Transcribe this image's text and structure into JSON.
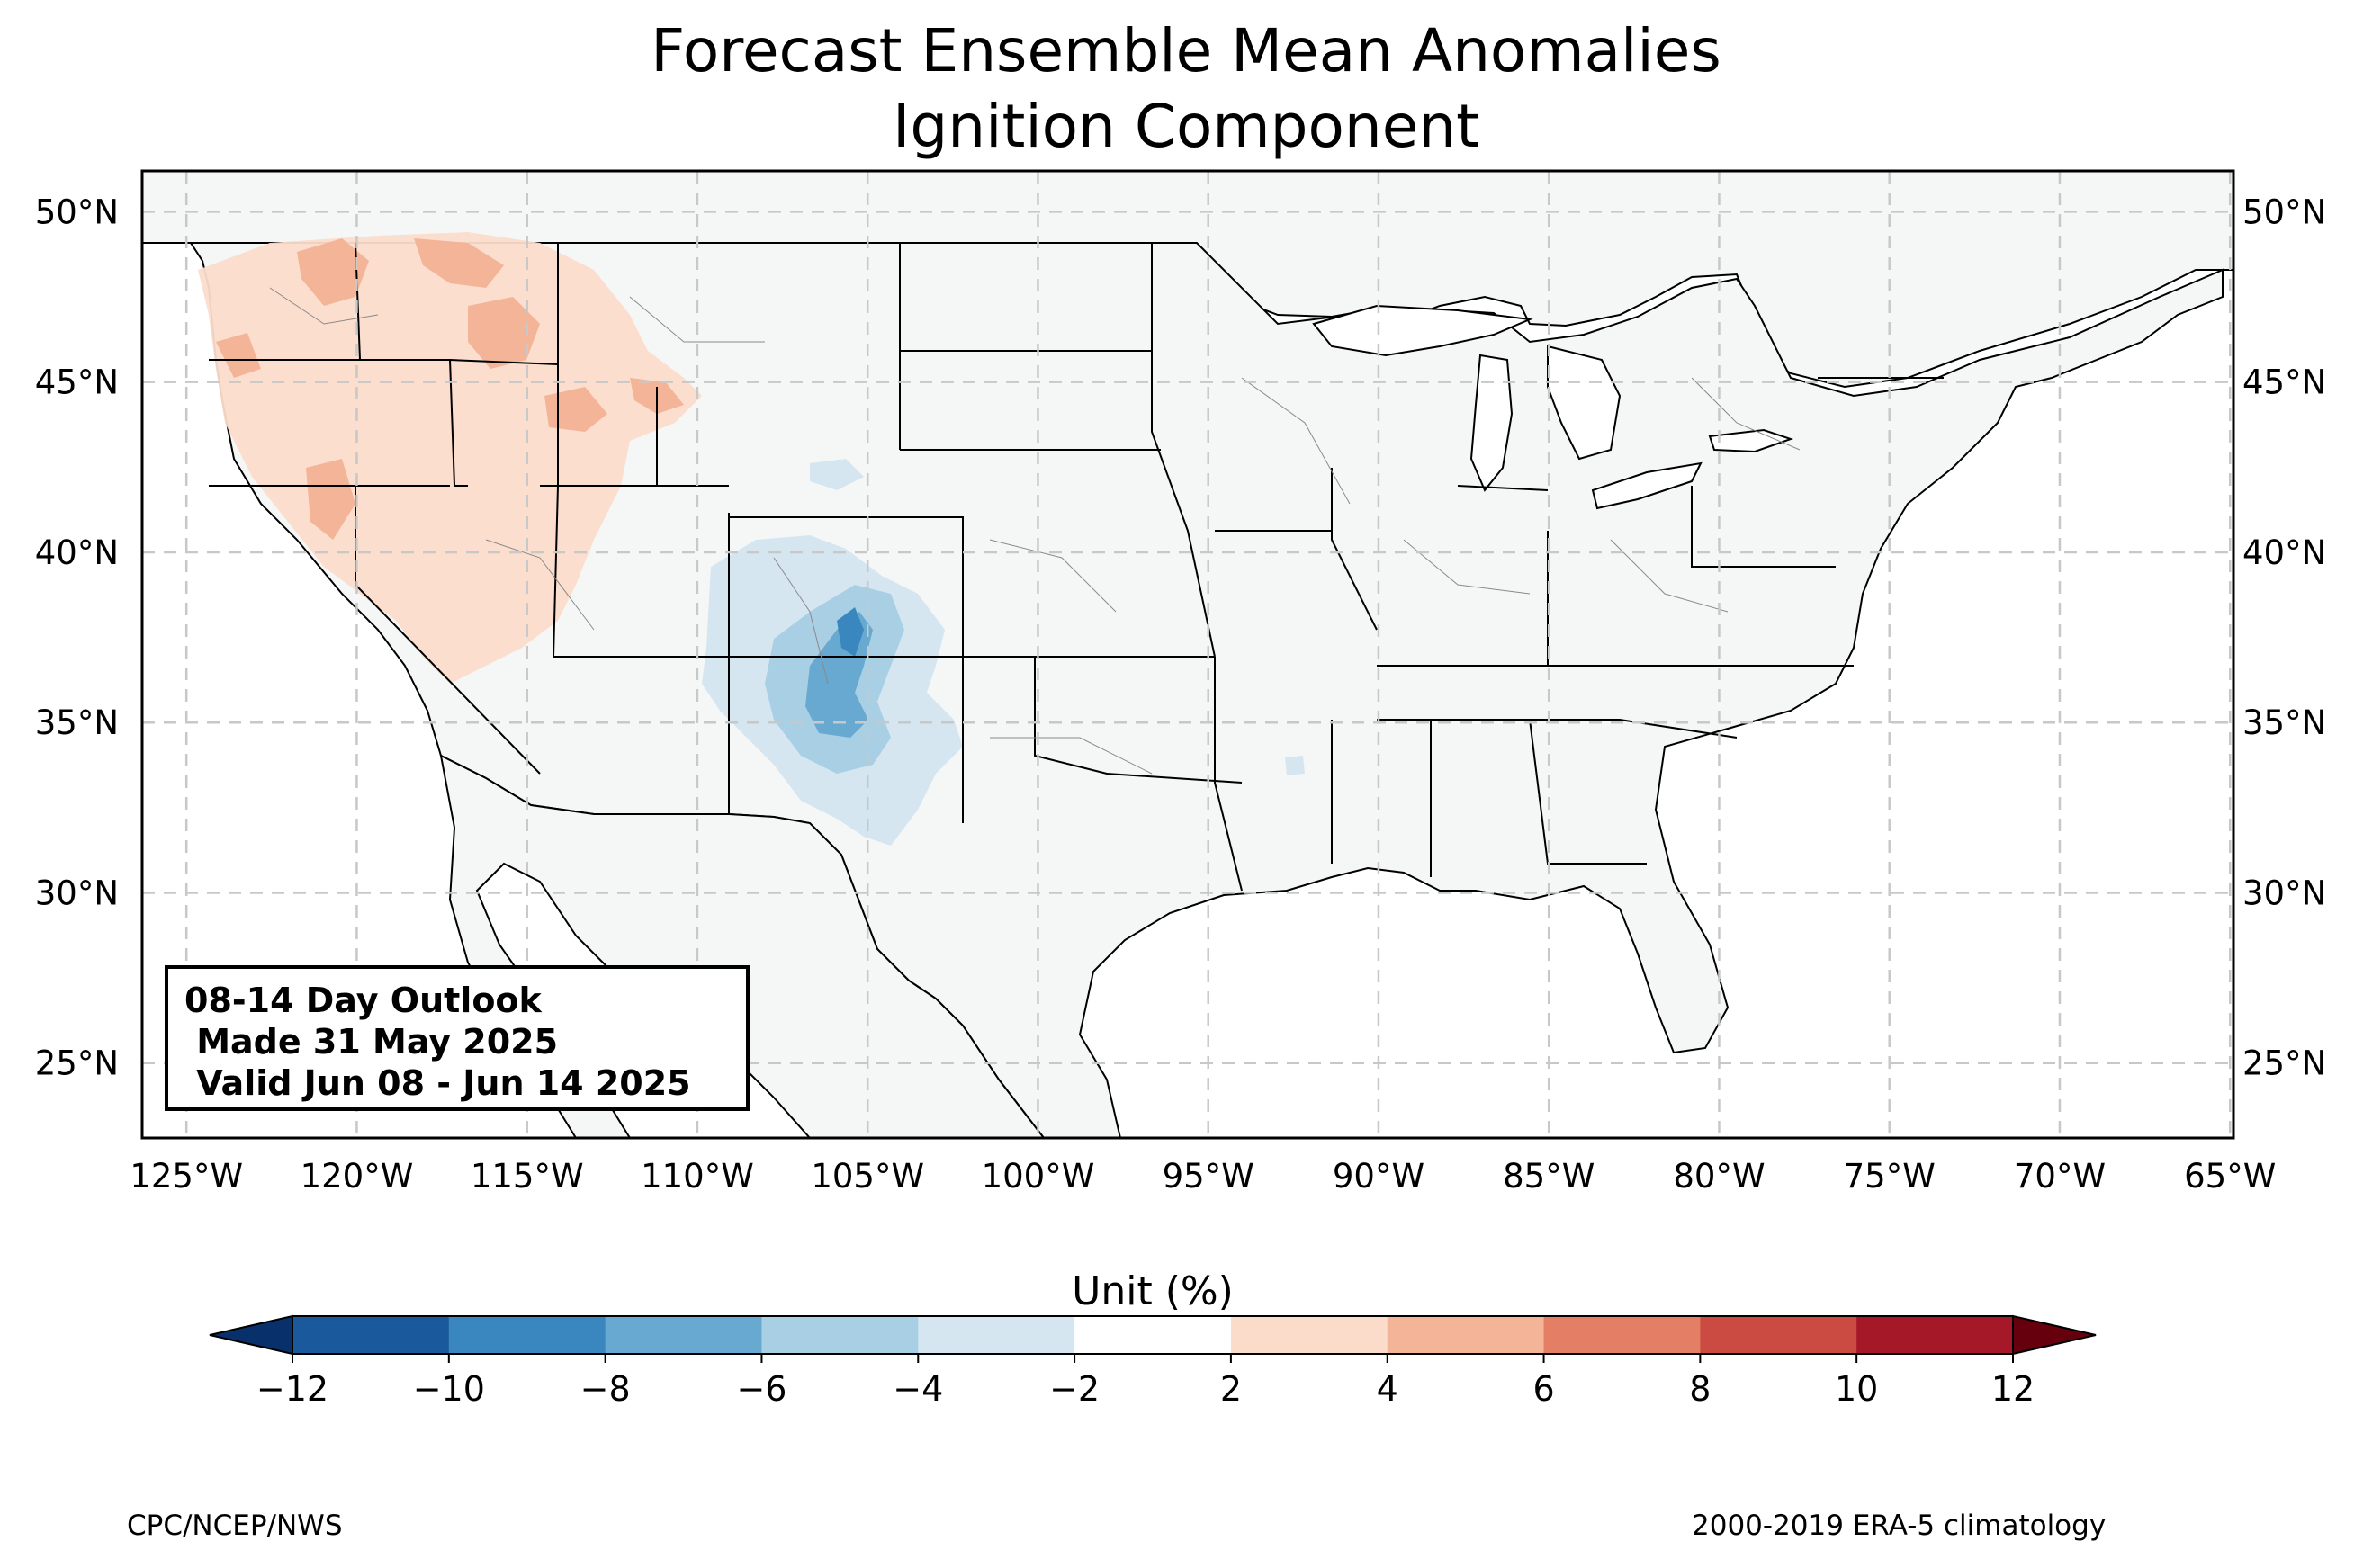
{
  "title": {
    "line1": "Forecast Ensemble Mean Anomalies",
    "line2": "Ignition Component"
  },
  "info_box": {
    "line1": "08-14 Day Outlook",
    "line2": " Made 31 May 2025",
    "line3": " Valid Jun 08 - Jun 14 2025"
  },
  "map": {
    "extent": {
      "lon_min": -126.3,
      "lon_max": -64.9,
      "lat_min": 22.8,
      "lat_max": 51.2
    },
    "lat_ticks": [
      {
        "value": 50,
        "label": "50°N"
      },
      {
        "value": 45,
        "label": "45°N"
      },
      {
        "value": 40,
        "label": "40°N"
      },
      {
        "value": 35,
        "label": "35°N"
      },
      {
        "value": 30,
        "label": "30°N"
      },
      {
        "value": 25,
        "label": "25°N"
      }
    ],
    "lon_ticks": [
      {
        "value": -125,
        "label": "125°W"
      },
      {
        "value": -120,
        "label": "120°W"
      },
      {
        "value": -115,
        "label": "115°W"
      },
      {
        "value": -110,
        "label": "110°W"
      },
      {
        "value": -105,
        "label": "105°W"
      },
      {
        "value": -100,
        "label": "100°W"
      },
      {
        "value": -95,
        "label": "95°W"
      },
      {
        "value": -90,
        "label": "90°W"
      },
      {
        "value": -85,
        "label": "85°W"
      },
      {
        "value": -80,
        "label": "80°W"
      },
      {
        "value": -75,
        "label": "75°W"
      },
      {
        "value": -70,
        "label": "70°W"
      },
      {
        "value": -65,
        "label": "65°W"
      }
    ],
    "gridlines": true,
    "land_color": "#f5f7f7",
    "anomaly_regions": [
      {
        "name": "northwest-positive-broad",
        "level": "2 to 4",
        "color": "#fbdccb"
      },
      {
        "name": "northwest-positive-core",
        "level": "4 to 6",
        "color": "#f4b497"
      },
      {
        "name": "southwest-negative-broad",
        "level": "-4 to -2",
        "color": "#d5e6f1"
      },
      {
        "name": "southwest-negative-mid",
        "level": "-6 to -4",
        "color": "#a8cfe4"
      },
      {
        "name": "southwest-negative-core",
        "level": "-8 to -6",
        "color": "#67a9d0"
      },
      {
        "name": "southwest-negative-max",
        "level": "-10 to -8",
        "color": "#3a87bf"
      }
    ]
  },
  "colorbar": {
    "label": "Unit (%)",
    "ticks": [
      "−12",
      "−10",
      "−8",
      "−6",
      "−4",
      "−2",
      "2",
      "4",
      "6",
      "8",
      "10",
      "12"
    ],
    "colors": [
      "#1a5a9c",
      "#3a87bf",
      "#67a9d0",
      "#a8cfe4",
      "#d5e6f1",
      "#ffffff",
      "#fbdccb",
      "#f4b497",
      "#e47f65",
      "#cb4b43",
      "#a51828"
    ],
    "extend_low_color": "#08306b",
    "extend_high_color": "#67000d"
  },
  "footer": {
    "left": "CPC/NCEP/NWS",
    "right": "2000-2019 ERA-5 climatology"
  }
}
